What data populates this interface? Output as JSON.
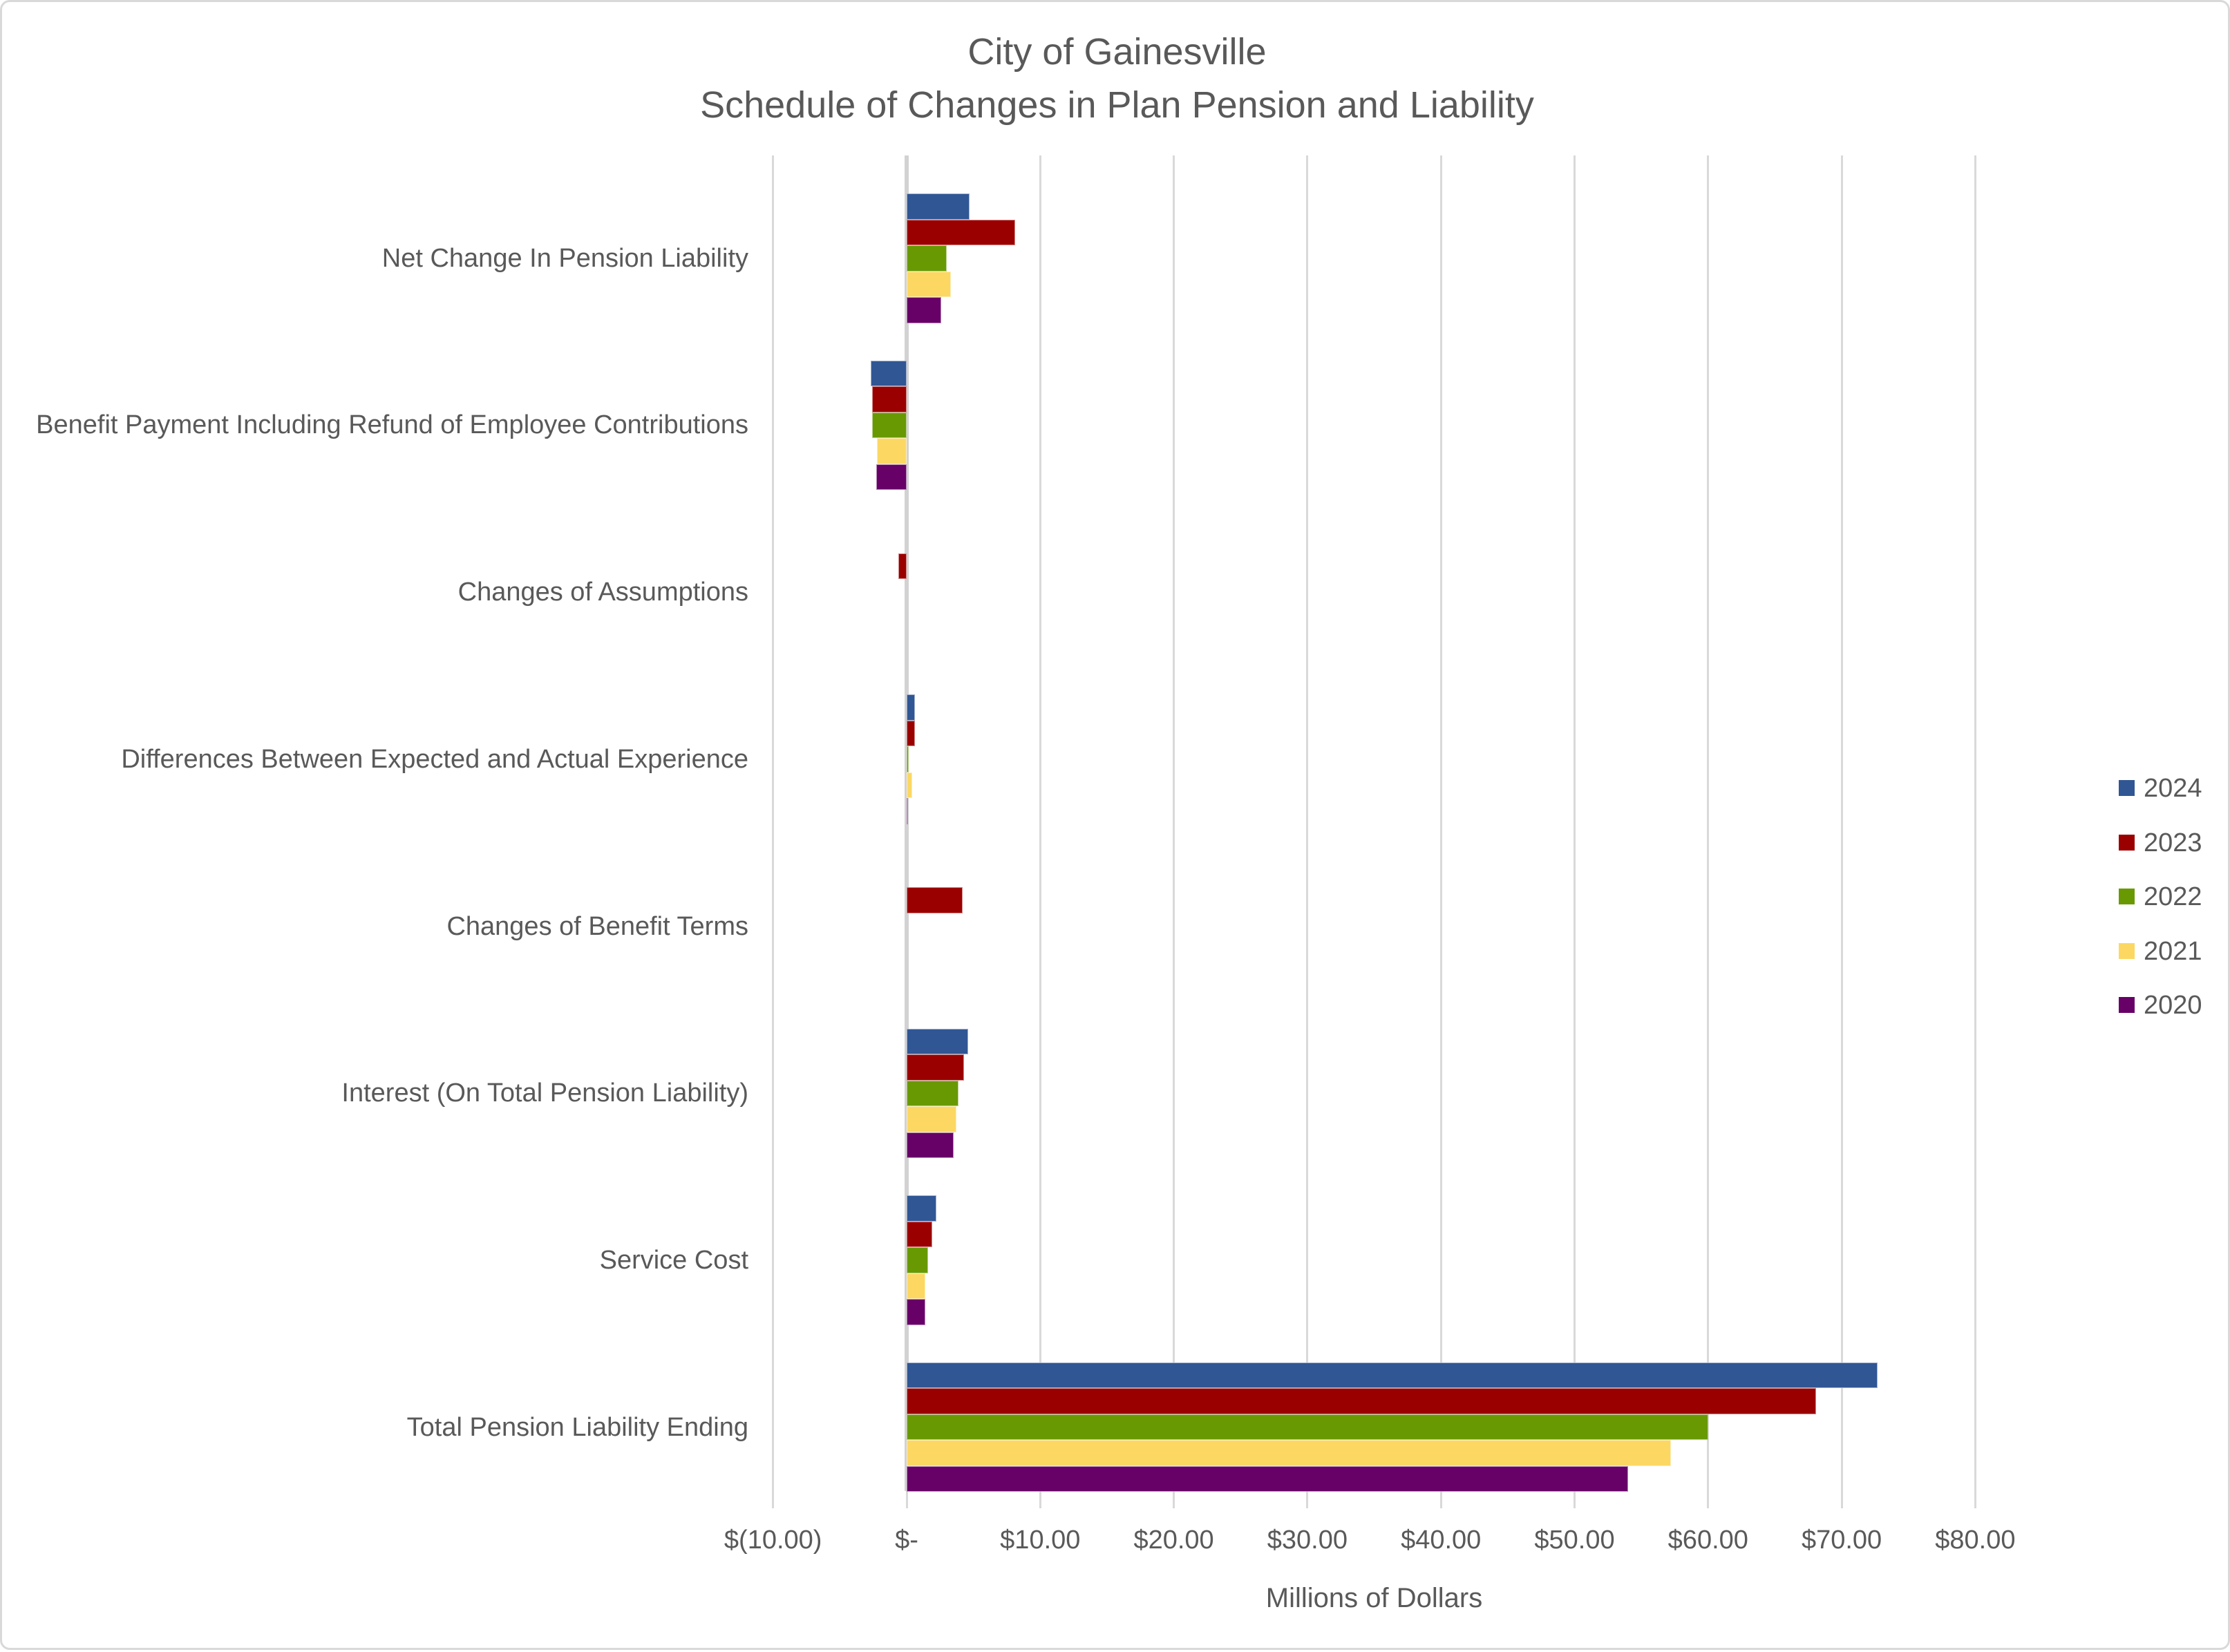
{
  "chart_data": {
    "type": "bar",
    "orientation": "horizontal",
    "title_lines": [
      "City of Gainesville",
      "Schedule of Changes in Plan Pension and Liability"
    ],
    "x_axis": {
      "label": "Millions of Dollars",
      "range": [
        -10,
        80
      ],
      "ticks": [
        -10,
        0,
        10,
        20,
        30,
        40,
        50,
        60,
        70,
        80
      ],
      "tick_labels": [
        "$(10.00)",
        "$-",
        "$10.00",
        "$20.00",
        "$30.00",
        "$40.00",
        "$50.00",
        "$60.00",
        "$70.00",
        "$80.00"
      ]
    },
    "grid": true,
    "legend_position": "right",
    "categories": [
      "Net Change In Pension Liability",
      "Benefit Payment Including Refund of Employee Contributions",
      "Changes of Assumptions",
      "Differences Between Expected and Actual Experience",
      "Changes of Benefit Terms",
      "Interest (On Total Pension Liability)",
      "Service Cost",
      "Total Pension Liability Ending"
    ],
    "series": [
      {
        "name": "2024",
        "color": "#305694",
        "values": [
          4.7,
          -2.7,
          0,
          0.6,
          0,
          4.6,
          2.2,
          72.7
        ]
      },
      {
        "name": "2023",
        "color": "#9B0000",
        "values": [
          8.1,
          -2.6,
          -0.6,
          0.6,
          4.2,
          4.3,
          1.9,
          68.1
        ]
      },
      {
        "name": "2022",
        "color": "#689903",
        "values": [
          3.0,
          -2.6,
          0,
          0.15,
          0,
          3.9,
          1.6,
          60.0
        ]
      },
      {
        "name": "2021",
        "color": "#FCD863",
        "values": [
          3.3,
          -2.2,
          0,
          0.4,
          0,
          3.7,
          1.4,
          57.2
        ]
      },
      {
        "name": "2020",
        "color": "#670167",
        "values": [
          2.6,
          -2.3,
          0,
          0.05,
          0,
          3.5,
          1.4,
          54.0
        ]
      }
    ]
  },
  "colors": {
    "text": "#595959",
    "gridline": "#D9D9D9",
    "zero_axis_line": "#D2D2D2",
    "border": "#D9D9D9",
    "background": "#FFFFFF"
  }
}
